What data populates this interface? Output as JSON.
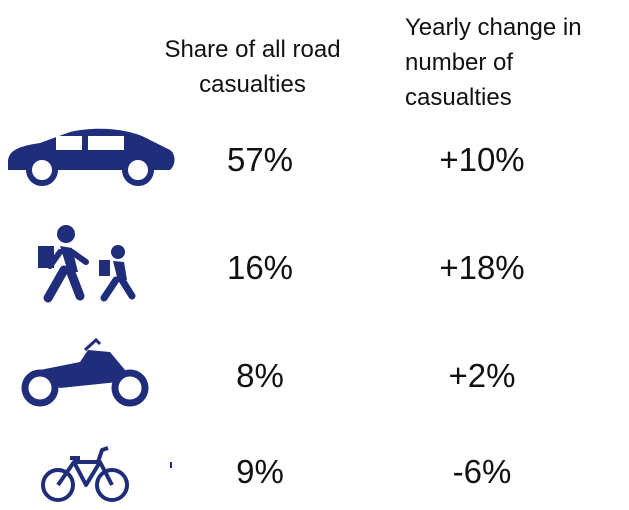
{
  "table": {
    "headers": [
      "Share of all road casualties",
      "Yearly change in number of casualties"
    ],
    "rows": [
      [
        "57%",
        "+10%"
      ],
      [
        "16%",
        "+18%"
      ],
      [
        "8%",
        "+2%"
      ],
      [
        "9%",
        "-6%"
      ]
    ]
  }
}
